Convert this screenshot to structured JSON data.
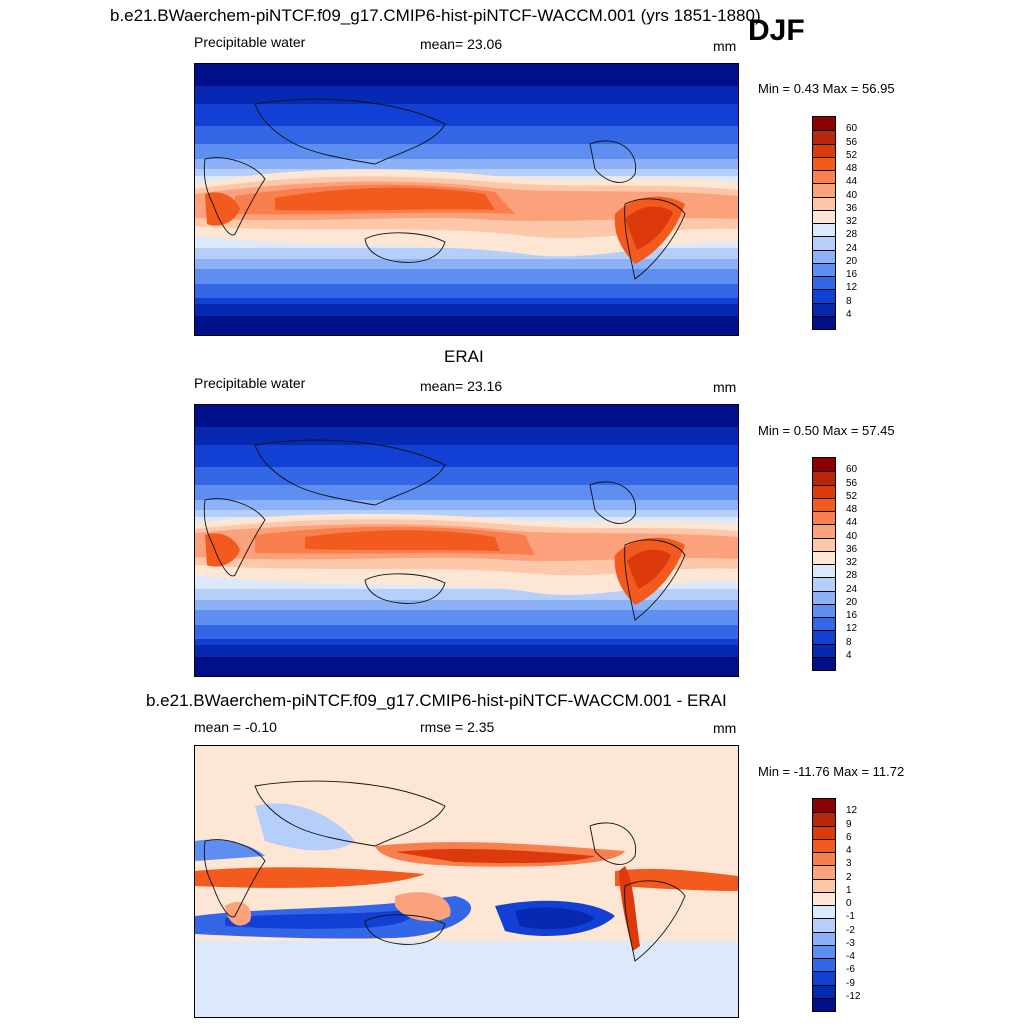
{
  "header": {
    "title": "b.e21.BWaerchem-piNTCF.f09_g17.CMIP6-hist-piNTCF-WACCM.001 (yrs 1851-1880)",
    "season": "DJF"
  },
  "panels": [
    {
      "id": "model",
      "variable": "Precipitable water",
      "stat_label": "mean=",
      "stat_value": "23.06",
      "units": "mm",
      "minmax": "Min =   0.43 Max =  56.95",
      "colorbar": {
        "labels": [
          "60",
          "56",
          "52",
          "48",
          "44",
          "40",
          "36",
          "32",
          "28",
          "24",
          "20",
          "16",
          "12",
          "8",
          "4"
        ],
        "colors": [
          "#8b0000",
          "#b8260b",
          "#dc3a0c",
          "#f25a1e",
          "#f97f4e",
          "#fba27c",
          "#fdc7a9",
          "#fee6d4",
          "#dce9fb",
          "#b6cffa",
          "#8cb1f7",
          "#5d8ef0",
          "#3467e6",
          "#1240d4",
          "#0728b0",
          "#000f8a"
        ]
      }
    },
    {
      "id": "obs",
      "panel_title": "ERAI",
      "variable": "Precipitable water",
      "stat_label": "mean=",
      "stat_value": "23.16",
      "units": "mm",
      "minmax": "Min =   0.50 Max =  57.45",
      "colorbar": {
        "labels": [
          "60",
          "56",
          "52",
          "48",
          "44",
          "40",
          "36",
          "32",
          "28",
          "24",
          "20",
          "16",
          "12",
          "8",
          "4"
        ],
        "colors": [
          "#8b0000",
          "#b8260b",
          "#dc3a0c",
          "#f25a1e",
          "#f97f4e",
          "#fba27c",
          "#fdc7a9",
          "#fee6d4",
          "#dce9fb",
          "#b6cffa",
          "#8cb1f7",
          "#5d8ef0",
          "#3467e6",
          "#1240d4",
          "#0728b0",
          "#000f8a"
        ]
      }
    },
    {
      "id": "diff",
      "panel_title": "b.e21.BWaerchem-piNTCF.f09_g17.CMIP6-hist-piNTCF-WACCM.001 - ERAI",
      "variable": "mean =  -0.10",
      "stat_label": "rmse =",
      "stat_value": "2.35",
      "units": "mm",
      "minmax": "Min = -11.76 Max =  11.72",
      "colorbar": {
        "labels": [
          "12",
          "9",
          "6",
          "4",
          "3",
          "2",
          "1",
          "0",
          "-1",
          "-2",
          "-3",
          "-4",
          "-6",
          "-9",
          "-12"
        ],
        "colors": [
          "#8b0000",
          "#b8260b",
          "#dc3a0c",
          "#f25a1e",
          "#f97f4e",
          "#fba27c",
          "#fdc7a9",
          "#fee6d4",
          "#dce9fb",
          "#b6cffa",
          "#8cb1f7",
          "#5d8ef0",
          "#3467e6",
          "#1240d4",
          "#0728b0",
          "#000f8a"
        ]
      }
    }
  ]
}
